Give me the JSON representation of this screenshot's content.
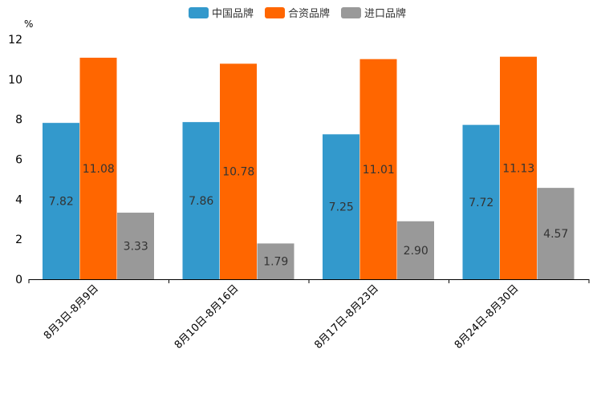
{
  "chart_data": {
    "type": "bar",
    "title": "",
    "xlabel": "",
    "ylabel": "%",
    "ylim": [
      0,
      12
    ],
    "yticks": [
      0,
      2,
      4,
      6,
      8,
      10,
      12
    ],
    "grid": false,
    "legend_position": "top-center",
    "categories": [
      "8月3日-8月9日",
      "8月10日-8月16日",
      "8月17日-8月23日",
      "8月24日-8月30日"
    ],
    "series": [
      {
        "name": "中国品牌",
        "color": "#3399cc",
        "values": [
          7.82,
          7.86,
          7.25,
          7.72
        ],
        "labels": [
          "7.82",
          "7.86",
          "7.25",
          "7.72"
        ]
      },
      {
        "name": "合资品牌",
        "color": "#ff6600",
        "values": [
          11.08,
          10.78,
          11.01,
          11.13
        ],
        "labels": [
          "11.08",
          "10.78",
          "11.01",
          "11.13"
        ]
      },
      {
        "name": "进口品牌",
        "color": "#999999",
        "values": [
          3.33,
          1.79,
          2.9,
          4.57
        ],
        "labels": [
          "3.33",
          "1.79",
          "2.90",
          "4.57"
        ]
      }
    ]
  }
}
